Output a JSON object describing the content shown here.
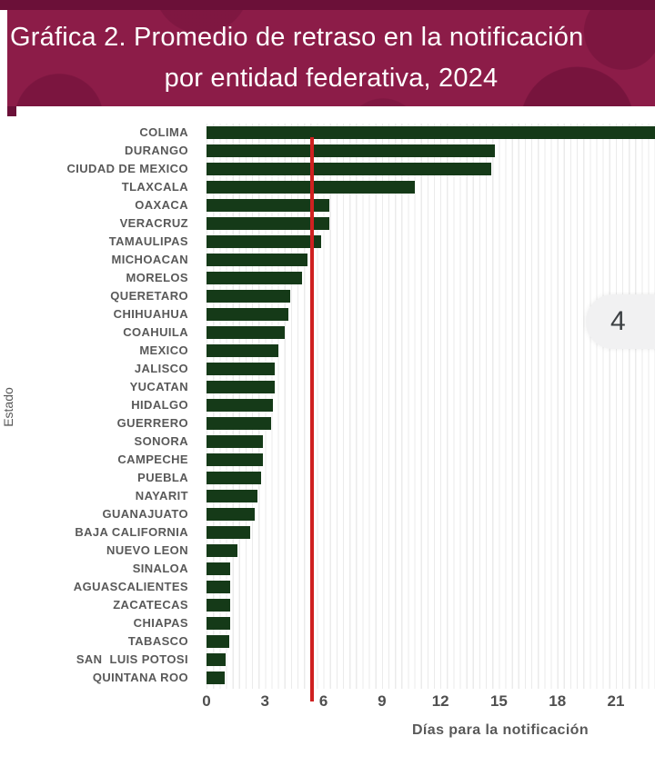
{
  "banner": {
    "title_line1": "Gráfica 2. Promedio de retraso en la notificación",
    "title_line2": "por entidad federativa, 2024",
    "bg_color": "#8c1c48",
    "top_strip_color": "#6b1038",
    "text_color": "#ffffff"
  },
  "overlay": {
    "page_badge": "4"
  },
  "chart_data": {
    "type": "bar",
    "orientation": "horizontal",
    "title": "Gráfica 2. Promedio de retraso en la notificación por entidad federativa, 2024",
    "xlabel": "Días para la notificación",
    "ylabel": "Estado",
    "xlim": [
      0,
      23
    ],
    "x_ticks": [
      0,
      3,
      6,
      9,
      12,
      15,
      18,
      21
    ],
    "grid": "minor-vertical",
    "bar_color": "#153a18",
    "reference_line": {
      "value": 5.4,
      "color": "#cf2121"
    },
    "categories": [
      "COLIMA",
      "DURANGO",
      "CIUDAD DE MEXICO",
      "TLAXCALA",
      "OAXACA",
      "VERACRUZ",
      "TAMAULIPAS",
      "MICHOACAN",
      "MORELOS",
      "QUERETARO",
      "CHIHUAHUA",
      "COAHUILA",
      "MEXICO",
      "JALISCO",
      "YUCATAN",
      "HIDALGO",
      "GUERRERO",
      "SONORA",
      "CAMPECHE",
      "PUEBLA",
      "NAYARIT",
      "GUANAJUATO",
      "BAJA CALIFORNIA",
      "NUEVO LEON",
      "SINALOA",
      "AGUASCALIENTES",
      "ZACATECAS",
      "CHIAPAS",
      "TABASCO",
      "SAN  LUIS POTOSI",
      "QUINTANA ROO"
    ],
    "values": [
      23.0,
      14.8,
      14.6,
      10.7,
      6.3,
      6.3,
      5.9,
      5.2,
      4.9,
      4.3,
      4.2,
      4.0,
      3.7,
      3.5,
      3.5,
      3.4,
      3.3,
      2.9,
      2.9,
      2.8,
      2.6,
      2.45,
      2.25,
      1.6,
      1.2,
      1.2,
      1.2,
      1.2,
      1.15,
      1.0,
      0.95
    ],
    "notes": "COLIMA bar is clipped at the right edge of the image"
  }
}
